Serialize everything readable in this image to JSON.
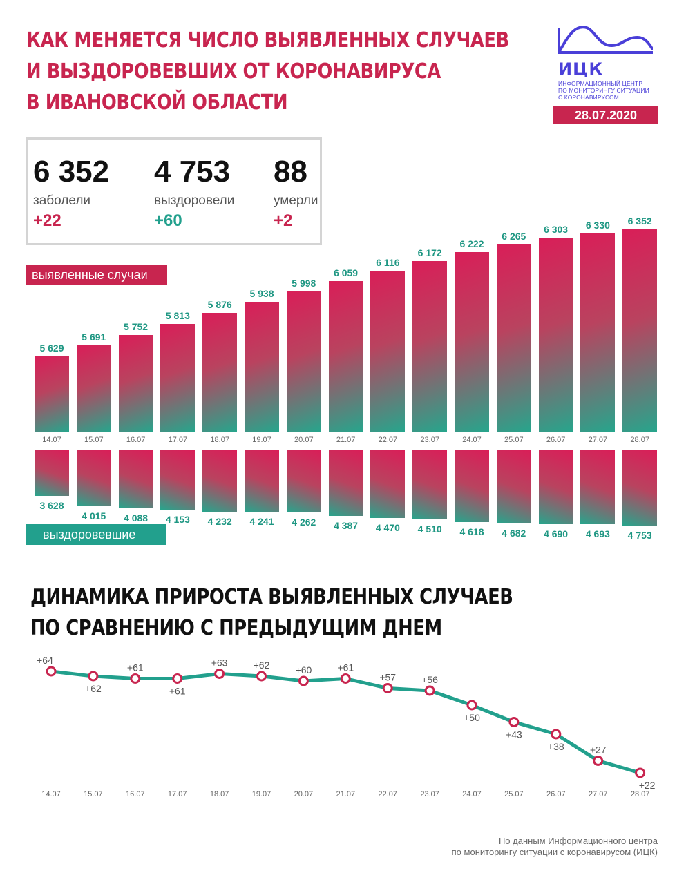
{
  "header": {
    "title_lines": [
      "КАК МЕНЯЕТСЯ ЧИСЛО ВЫЯВЛЕННЫХ СЛУЧАЕВ",
      "И ВЫЗДОРОВЕВШИХ ОТ КОРОНАВИРУСА",
      "В ИВАНОВСКОЙ ОБЛАСТИ"
    ],
    "date": "28.07.2020"
  },
  "logo": {
    "abbr": "ИЦК",
    "subtitle_lines": [
      "Информационный центр",
      "по мониторингу ситуации",
      "с коронавирусом"
    ],
    "color": "#4a3fd8"
  },
  "stats": [
    {
      "value": "6 352",
      "label": "заболели",
      "delta": "+22",
      "delta_color": "#c8254f"
    },
    {
      "value": "4 753",
      "label": "выздоровели",
      "delta": "+60",
      "delta_color": "#22a08d"
    },
    {
      "value": "88",
      "label": "умерли",
      "delta": "+2",
      "delta_color": "#c8254f"
    }
  ],
  "legend": {
    "cases": "выявленные случаи",
    "recovered": "выздоровевшие"
  },
  "chart2": {
    "title_lines": [
      "ДИНАМИКА ПРИРОСТА ВЫЯВЛЕННЫХ СЛУЧАЕВ",
      "ПО СРАВНЕНИЮ С ПРЕДЫДУЩИМ ДНЕМ"
    ]
  },
  "source": {
    "lines": [
      "По данным Информационного центра",
      "по мониторингу ситуации с коронавирусом (ИЦК)"
    ]
  },
  "colors": {
    "accent": "#c8254f",
    "green": "#22a08d"
  },
  "chart_data": [
    {
      "type": "bar",
      "categories": [
        "14.07",
        "15.07",
        "16.07",
        "17.07",
        "18.07",
        "19.07",
        "20.07",
        "21.07",
        "22.07",
        "23.07",
        "24.07",
        "25.07",
        "26.07",
        "27.07",
        "28.07"
      ],
      "series": [
        {
          "name": "выявленные случаи",
          "values": [
            5629,
            5691,
            5752,
            5813,
            5876,
            5938,
            5998,
            6059,
            6116,
            6172,
            6222,
            6265,
            6303,
            6330,
            6352
          ],
          "labels": [
            "5 629",
            "5 691",
            "5 752",
            "5 813",
            "5 876",
            "5 938",
            "5 998",
            "6 059",
            "6 116",
            "6 172",
            "6 222",
            "6 265",
            "6 303",
            "6 330",
            "6 352"
          ]
        },
        {
          "name": "выздоровевшие",
          "values": [
            3628,
            4015,
            4088,
            4153,
            4232,
            4241,
            4262,
            4387,
            4470,
            4510,
            4618,
            4682,
            4690,
            4693,
            4753
          ],
          "labels": [
            "3 628",
            "4 015",
            "4 088",
            "4 153",
            "4 232",
            "4 241",
            "4 262",
            "4 387",
            "4 470",
            "4 510",
            "4 618",
            "4 682",
            "4 690",
            "4 693",
            "4 753"
          ]
        }
      ]
    },
    {
      "type": "line",
      "title": "ДИНАМИКА ПРИРОСТА ВЫЯВЛЕННЫХ СЛУЧАЕВ ПО СРАВНЕНИЮ С ПРЕДЫДУЩИМ ДНЕМ",
      "categories": [
        "14.07",
        "15.07",
        "16.07",
        "17.07",
        "18.07",
        "19.07",
        "20.07",
        "21.07",
        "22.07",
        "23.07",
        "24.07",
        "25.07",
        "26.07",
        "27.07",
        "28.07"
      ],
      "values": [
        64,
        62,
        61,
        61,
        63,
        62,
        60,
        61,
        57,
        56,
        50,
        43,
        38,
        27,
        22
      ],
      "labels": [
        "+64",
        "+62",
        "+61",
        "+61",
        "+63",
        "+62",
        "+60",
        "+61",
        "+57",
        "+56",
        "+50",
        "+43",
        "+38",
        "+27",
        "+22"
      ],
      "label_position": [
        "above",
        "below",
        "above",
        "below",
        "above",
        "above",
        "above",
        "above",
        "above",
        "above",
        "below",
        "below",
        "below",
        "above",
        "below"
      ],
      "line_color": "#22a08d",
      "marker_color": "#c8254f"
    }
  ]
}
